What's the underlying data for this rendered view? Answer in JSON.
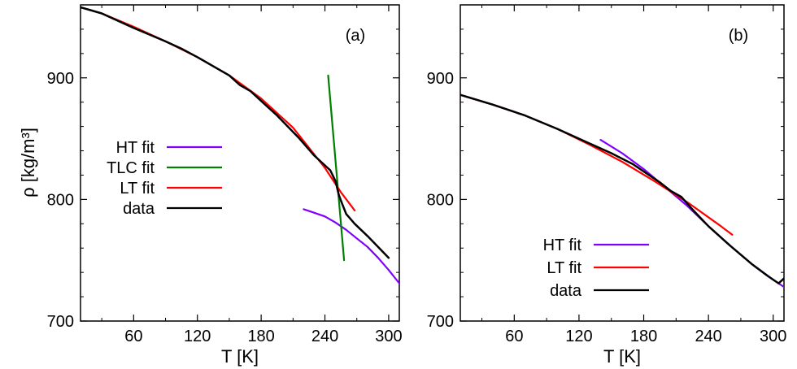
{
  "chart_data": [
    {
      "type": "line",
      "panel_label": "(a)",
      "xlabel": "T [K]",
      "ylabel": "ρ [kg/m³]",
      "xlim": [
        10,
        310
      ],
      "ylim": [
        700,
        960
      ],
      "xticks": [
        60,
        120,
        180,
        240,
        300
      ],
      "yticks": [
        700,
        800,
        900
      ],
      "grid": false,
      "legend_position": "left-middle",
      "legend": [
        "HT fit",
        "TLC fit",
        "LT fit",
        "data"
      ],
      "series": [
        {
          "name": "HT fit",
          "color": "#7f00ff",
          "x": [
            220,
            230,
            240,
            250,
            260,
            270,
            280,
            290,
            300,
            310
          ],
          "y": [
            792,
            789,
            786,
            781,
            775,
            768,
            761,
            752,
            742,
            731
          ]
        },
        {
          "name": "TLC fit",
          "color": "#007f00",
          "x": [
            243,
            258
          ],
          "y": [
            902,
            750
          ]
        },
        {
          "name": "LT fit",
          "color": "#ff0000",
          "x": [
            10,
            30,
            60,
            90,
            120,
            150,
            180,
            210,
            240,
            255,
            268
          ],
          "y": [
            958,
            953,
            942,
            930,
            917,
            902,
            883,
            859,
            826,
            806,
            791
          ]
        },
        {
          "name": "data",
          "color": "#000000",
          "x": [
            10,
            30,
            60,
            90,
            105,
            120,
            150,
            160,
            170,
            180,
            195,
            205,
            215,
            230,
            245,
            250,
            253,
            256,
            260,
            268,
            280,
            300
          ],
          "y": [
            958,
            953,
            941,
            930,
            924,
            917,
            902,
            894,
            889,
            881,
            869,
            860,
            851,
            836,
            824,
            815,
            804,
            797,
            788,
            780,
            770,
            752
          ]
        }
      ]
    },
    {
      "type": "line",
      "panel_label": "(b)",
      "xlabel": "T [K]",
      "ylabel": "",
      "xlim": [
        10,
        310
      ],
      "ylim": [
        700,
        960
      ],
      "xticks": [
        60,
        120,
        180,
        240,
        300
      ],
      "yticks": [
        700,
        800,
        900
      ],
      "grid": false,
      "legend_position": "bottom-center",
      "legend": [
        "HT fit",
        "LT fit",
        "data"
      ],
      "series": [
        {
          "name": "HT fit",
          "color": "#7f00ff",
          "x": [
            140,
            160,
            180,
            200,
            220,
            240,
            260,
            280,
            300,
            310
          ],
          "y": [
            849,
            838,
            825,
            810,
            795,
            778,
            762,
            747,
            734,
            728
          ]
        },
        {
          "name": "LT fit",
          "color": "#ff0000",
          "x": [
            10,
            40,
            70,
            100,
            130,
            160,
            190,
            220,
            250,
            262
          ],
          "y": [
            886,
            878,
            869,
            858,
            845,
            831,
            815,
            798,
            779,
            771
          ]
        },
        {
          "name": "data",
          "color": "#000000",
          "x": [
            10,
            40,
            70,
            100,
            115,
            130,
            150,
            170,
            180,
            195,
            205,
            215,
            225,
            240,
            260,
            280,
            295,
            305,
            310
          ],
          "y": [
            886,
            878,
            869,
            858,
            852,
            846,
            838,
            829,
            823,
            814,
            807,
            802,
            792,
            778,
            762,
            747,
            737,
            731,
            735
          ]
        }
      ]
    }
  ]
}
